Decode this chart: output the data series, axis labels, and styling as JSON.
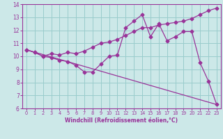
{
  "xlabel": "Windchill (Refroidissement éolien,°C)",
  "bg_color": "#cce8e8",
  "line_color": "#993399",
  "grid_color": "#99cccc",
  "xlim": [
    -0.5,
    23.5
  ],
  "ylim": [
    6,
    14
  ],
  "yticks": [
    6,
    7,
    8,
    9,
    10,
    11,
    12,
    13,
    14
  ],
  "xticks": [
    0,
    1,
    2,
    3,
    4,
    5,
    6,
    7,
    8,
    9,
    10,
    11,
    12,
    13,
    14,
    15,
    16,
    17,
    18,
    19,
    20,
    21,
    22,
    23
  ],
  "line1_x": [
    0,
    1,
    2,
    3,
    4,
    5,
    6,
    7,
    8,
    9,
    10,
    11,
    12,
    13,
    14,
    15,
    16,
    17,
    18,
    19,
    20,
    21,
    22,
    23
  ],
  "line1_y": [
    10.5,
    10.3,
    10.0,
    9.9,
    9.7,
    9.6,
    9.3,
    8.8,
    8.8,
    9.4,
    10.0,
    10.1,
    12.2,
    12.7,
    13.2,
    11.5,
    12.5,
    11.2,
    11.5,
    11.9,
    11.9,
    9.5,
    8.1,
    6.3
  ],
  "line2_x": [
    0,
    1,
    2,
    3,
    4,
    5,
    6,
    7,
    8,
    9,
    10,
    11,
    12,
    13,
    14,
    15,
    16,
    17,
    18,
    19,
    20,
    21,
    22,
    23
  ],
  "line2_y": [
    10.5,
    10.3,
    10.0,
    10.2,
    10.1,
    10.3,
    10.2,
    10.4,
    10.7,
    11.0,
    11.1,
    11.3,
    11.6,
    11.9,
    12.2,
    12.2,
    12.4,
    12.5,
    12.6,
    12.7,
    12.9,
    13.2,
    13.5,
    13.7
  ],
  "line3_x": [
    0,
    23
  ],
  "line3_y": [
    10.5,
    6.3
  ]
}
